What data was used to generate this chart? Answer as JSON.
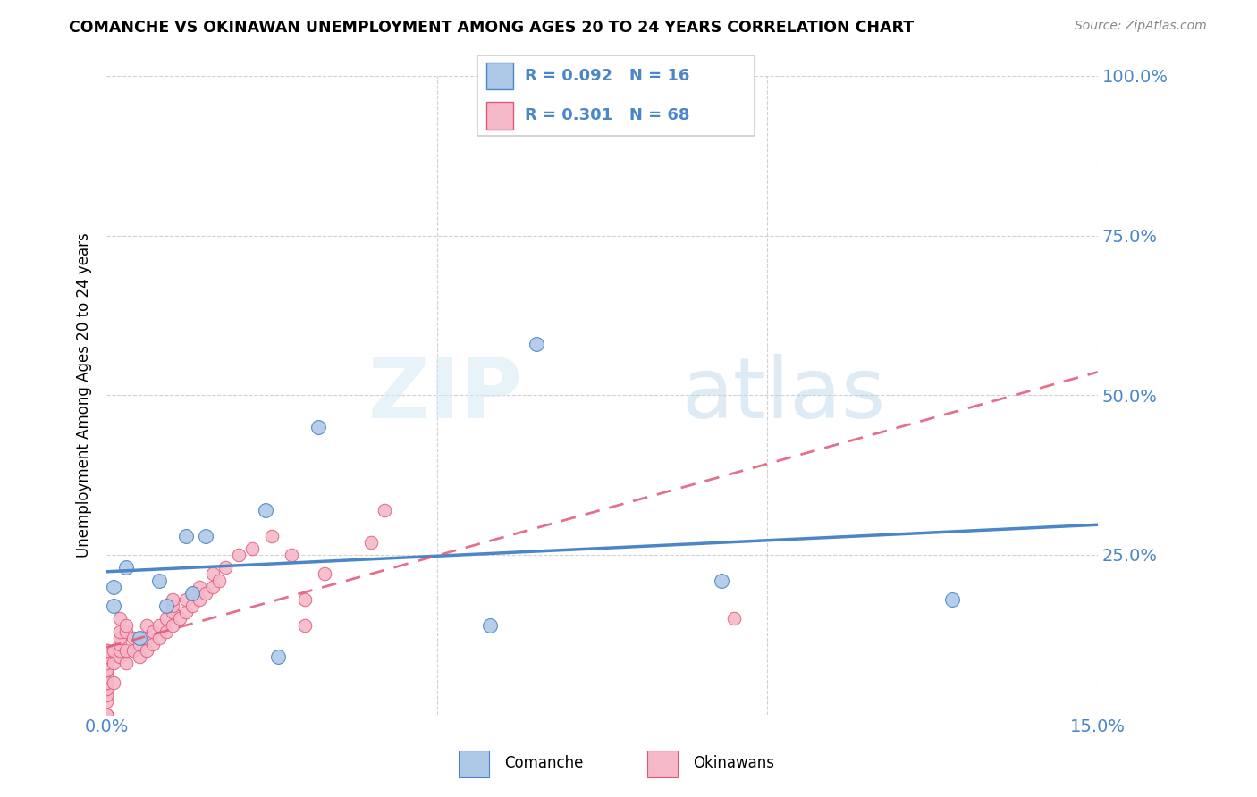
{
  "title": "COMANCHE VS OKINAWAN UNEMPLOYMENT AMONG AGES 20 TO 24 YEARS CORRELATION CHART",
  "source": "Source: ZipAtlas.com",
  "ylabel": "Unemployment Among Ages 20 to 24 years",
  "xlim": [
    0.0,
    0.15
  ],
  "ylim": [
    0.0,
    1.0
  ],
  "xticks": [
    0.0,
    0.05,
    0.1,
    0.15
  ],
  "xticklabels": [
    "0.0%",
    "",
    "",
    "15.0%"
  ],
  "yticks_right": [
    0.25,
    0.5,
    0.75,
    1.0
  ],
  "yticklabels_right": [
    "25.0%",
    "50.0%",
    "75.0%",
    "100.0%"
  ],
  "comanche_color": "#aec9e8",
  "okinawan_color": "#f5b8c8",
  "comanche_line_color": "#4a86c8",
  "okinawan_line_color": "#e05878",
  "legend_R_comanche": "0.092",
  "legend_N_comanche": "16",
  "legend_R_okinawan": "0.301",
  "legend_N_okinawan": "68",
  "watermark_zip": "ZIP",
  "watermark_atlas": "atlas",
  "tick_color": "#4a86c8",
  "comanche_x": [
    0.001,
    0.001,
    0.003,
    0.005,
    0.008,
    0.009,
    0.012,
    0.013,
    0.015,
    0.024,
    0.026,
    0.032,
    0.058,
    0.065,
    0.093,
    0.128
  ],
  "comanche_y": [
    0.2,
    0.17,
    0.23,
    0.12,
    0.21,
    0.17,
    0.28,
    0.19,
    0.28,
    0.32,
    0.09,
    0.45,
    0.14,
    0.58,
    0.21,
    0.18
  ],
  "okinawan_x": [
    0.0,
    0.0,
    0.0,
    0.0,
    0.0,
    0.0,
    0.0,
    0.0,
    0.0,
    0.0,
    0.0,
    0.0,
    0.0,
    0.0,
    0.0,
    0.001,
    0.001,
    0.001,
    0.002,
    0.002,
    0.002,
    0.002,
    0.002,
    0.002,
    0.003,
    0.003,
    0.003,
    0.003,
    0.004,
    0.004,
    0.005,
    0.005,
    0.005,
    0.006,
    0.006,
    0.006,
    0.007,
    0.007,
    0.008,
    0.008,
    0.009,
    0.009,
    0.01,
    0.01,
    0.01,
    0.01,
    0.011,
    0.012,
    0.012,
    0.013,
    0.013,
    0.014,
    0.014,
    0.015,
    0.016,
    0.016,
    0.017,
    0.018,
    0.02,
    0.022,
    0.025,
    0.028,
    0.03,
    0.03,
    0.033,
    0.04,
    0.042,
    0.095
  ],
  "okinawan_y": [
    0.0,
    0.0,
    0.02,
    0.03,
    0.04,
    0.05,
    0.05,
    0.06,
    0.07,
    0.07,
    0.07,
    0.08,
    0.09,
    0.1,
    0.1,
    0.05,
    0.08,
    0.1,
    0.09,
    0.1,
    0.11,
    0.12,
    0.13,
    0.15,
    0.08,
    0.1,
    0.13,
    0.14,
    0.1,
    0.12,
    0.09,
    0.11,
    0.12,
    0.1,
    0.12,
    0.14,
    0.11,
    0.13,
    0.12,
    0.14,
    0.13,
    0.15,
    0.14,
    0.16,
    0.17,
    0.18,
    0.15,
    0.16,
    0.18,
    0.17,
    0.19,
    0.18,
    0.2,
    0.19,
    0.2,
    0.22,
    0.21,
    0.23,
    0.25,
    0.26,
    0.28,
    0.25,
    0.14,
    0.18,
    0.22,
    0.27,
    0.32,
    0.15
  ]
}
